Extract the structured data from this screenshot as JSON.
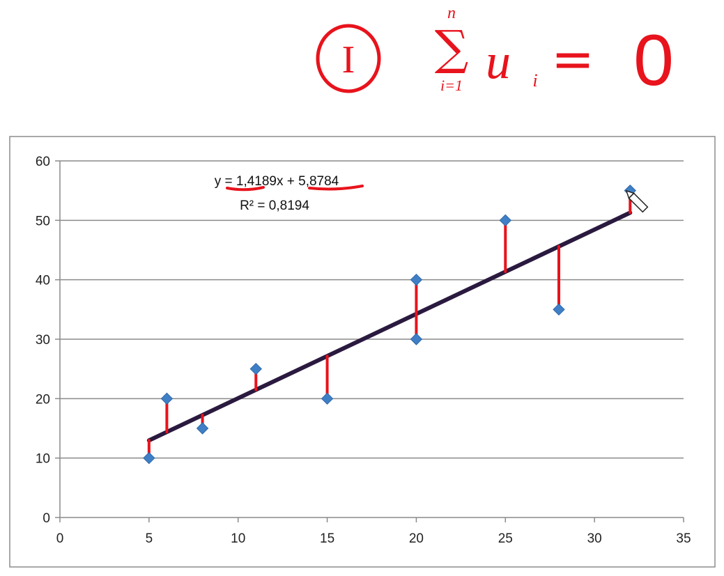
{
  "annotation": {
    "circled_numeral": "I",
    "sum_upper": "n",
    "sum_lower": "i=1",
    "summand": "u",
    "summand_index": "i",
    "equals": "=",
    "result": "0",
    "ink_color": "#e8131c"
  },
  "chart_data": {
    "type": "scatter",
    "title": "",
    "xlabel": "",
    "ylabel": "",
    "xlim": [
      0,
      35
    ],
    "ylim": [
      0,
      60
    ],
    "x_ticks": [
      "0",
      "5",
      "10",
      "15",
      "20",
      "25",
      "30",
      "35"
    ],
    "y_ticks": [
      "0",
      "10",
      "20",
      "30",
      "40",
      "50",
      "60"
    ],
    "grid": true,
    "series": [
      {
        "marker": "diamond",
        "color": "#3f7fc6",
        "points": [
          {
            "x": 5,
            "y": 10
          },
          {
            "x": 6,
            "y": 20
          },
          {
            "x": 8,
            "y": 15
          },
          {
            "x": 11,
            "y": 25
          },
          {
            "x": 15,
            "y": 20
          },
          {
            "x": 20,
            "y": 40
          },
          {
            "x": 20,
            "y": 30
          },
          {
            "x": 25,
            "y": 50
          },
          {
            "x": 28,
            "y": 35
          },
          {
            "x": 32,
            "y": 55
          }
        ]
      }
    ],
    "trendline": {
      "slope": 1.4189,
      "intercept": 5.8784,
      "x_range": [
        5,
        32
      ],
      "color": "#2a1a3f",
      "equation": "y = 1,4189x + 5,8784",
      "r_squared": "R² = 0,8194"
    },
    "residual_color": "#e8131c"
  }
}
